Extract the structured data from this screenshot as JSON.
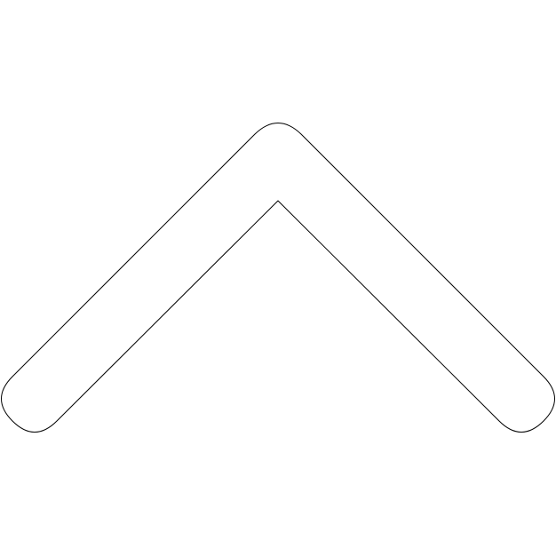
{
  "icon": {
    "name": "chevron-up-icon",
    "fill_color": "#ffffff",
    "outline_color": "#000000"
  }
}
